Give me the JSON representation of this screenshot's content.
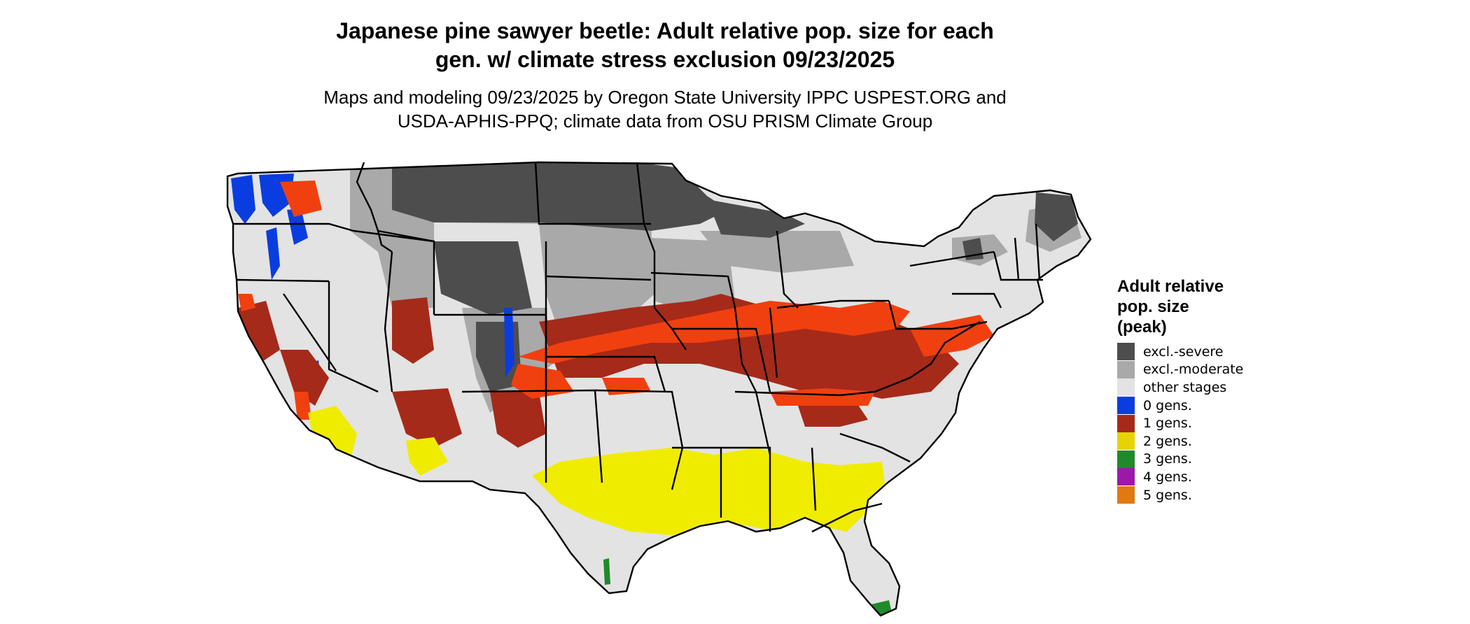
{
  "title": {
    "line1": "Japanese pine sawyer beetle: Adult relative pop. size for each",
    "line2": "gen. w/ climate stress exclusion 09/23/2025"
  },
  "subtitle": {
    "line1": "Maps and modeling 09/23/2025 by Oregon State University IPPC USPEST.ORG and",
    "line2": "USDA-APHIS-PPQ; climate data from OSU PRISM Climate Group"
  },
  "legend": {
    "title_lines": [
      "Adult relative",
      "pop. size",
      "(peak)"
    ],
    "items": [
      {
        "label": "excl.-severe",
        "color": "#4d4d4d"
      },
      {
        "label": "excl.-moderate",
        "color": "#a9a9a9"
      },
      {
        "label": "other stages",
        "color": "#e3e3e3"
      },
      {
        "label": "0 gens.",
        "color": "#0a3de0"
      },
      {
        "label": "1 gens.",
        "color": "#a52a1a"
      },
      {
        "label": "2 gens.",
        "color": "#e6d300"
      },
      {
        "label": "3 gens.",
        "color": "#1f8a2a"
      },
      {
        "label": "4 gens.",
        "color": "#9a1aa8"
      },
      {
        "label": "5 gens.",
        "color": "#e07a10"
      }
    ]
  },
  "map": {
    "region": "contiguous-united-states",
    "colors": {
      "other_stages": "#e3e3e3",
      "excl_severe": "#4d4d4d",
      "excl_moderate": "#a9a9a9",
      "gen1_dark": "#a52a1a",
      "gen1_light": "#f04010",
      "gen2": "#f0ec00",
      "gen0": "#0a3de0",
      "gen3": "#1f8a2a",
      "border": "#000000"
    }
  }
}
